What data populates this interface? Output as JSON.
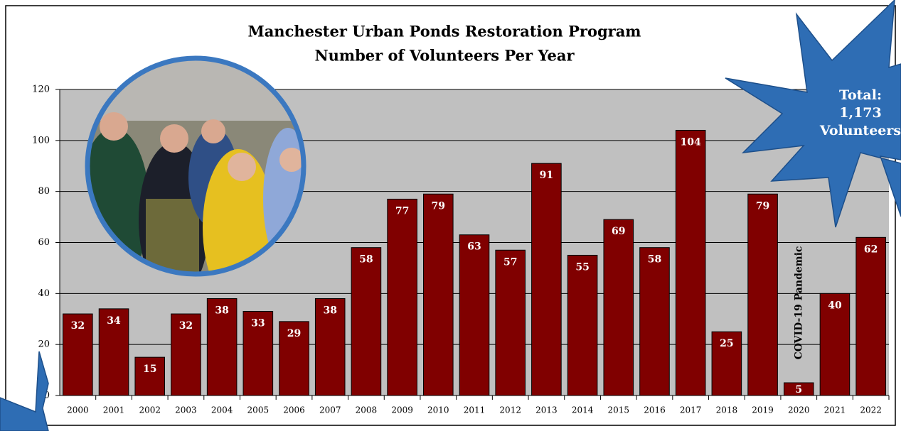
{
  "chart_data": {
    "type": "bar",
    "title": [
      "Manchester Urban Ponds Restoration Program",
      "Number of Volunteers Per Year"
    ],
    "categories": [
      "2000",
      "2001",
      "2002",
      "2003",
      "2004",
      "2005",
      "2006",
      "2007",
      "2008",
      "2009",
      "2010",
      "2011",
      "2012",
      "2013",
      "2014",
      "2015",
      "2016",
      "2017",
      "2018",
      "2019",
      "2020",
      "2021",
      "2022"
    ],
    "values": [
      32,
      34,
      15,
      32,
      38,
      33,
      29,
      38,
      58,
      77,
      79,
      63,
      57,
      91,
      55,
      69,
      58,
      104,
      25,
      79,
      5,
      40,
      62
    ],
    "color": "#800000",
    "ylim": [
      0,
      120
    ],
    "yticks": [
      0,
      20,
      40,
      60,
      80,
      100,
      120
    ],
    "grid": true,
    "annotations": [
      "COVID-19 Pandemic",
      "Total:",
      "1,173",
      "Volunteers"
    ]
  }
}
